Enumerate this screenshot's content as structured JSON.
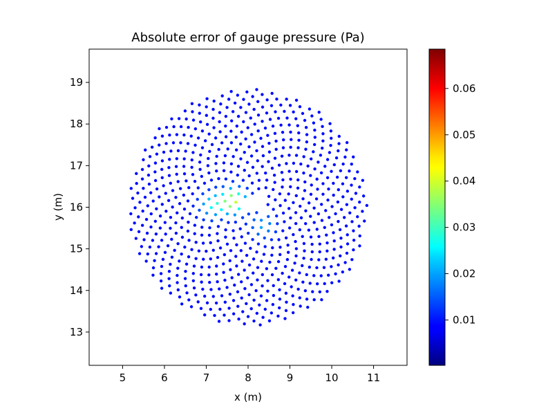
{
  "chart_data": {
    "type": "scatter",
    "title": "Absolute error of gauge pressure (Pa)",
    "xlabel": "x (m)",
    "ylabel": "y (m)",
    "xlim": [
      4.2,
      11.8
    ],
    "ylim": [
      12.2,
      19.8
    ],
    "xticks": [
      5,
      6,
      7,
      8,
      9,
      10,
      11
    ],
    "yticks": [
      13,
      14,
      15,
      16,
      17,
      18,
      19
    ],
    "colormap": "jet",
    "colorbar": {
      "min": 0.0002,
      "max": 0.0685,
      "ticks": [
        0.01,
        0.02,
        0.03,
        0.04,
        0.05,
        0.06
      ],
      "tick_labels": [
        "0.01",
        "0.02",
        "0.03",
        "0.04",
        "0.05",
        "0.06"
      ]
    },
    "domain": {
      "center": [
        8.0,
        16.0
      ],
      "outer_radius": 2.85,
      "inner_obstacle": [
        [
          7.7,
          16.15
        ],
        [
          8.35,
          16.4
        ],
        [
          8.55,
          15.8
        ]
      ]
    },
    "background_error": 0.003,
    "hotspots": [
      {
        "x": 7.65,
        "y": 16.15,
        "peak": 0.034
      },
      {
        "x": 7.15,
        "y": 16.05,
        "peak": 0.018
      },
      {
        "x": 8.35,
        "y": 15.55,
        "peak": 0.012
      }
    ],
    "sample_points": [
      {
        "x": 7.4,
        "y": 16.2,
        "value": 0.03
      },
      {
        "x": 8.6,
        "y": 15.7,
        "value": 0.008
      },
      {
        "x": 10.9,
        "y": 16.0,
        "value": 0.002
      }
    ],
    "grid": false,
    "legend": "none"
  }
}
